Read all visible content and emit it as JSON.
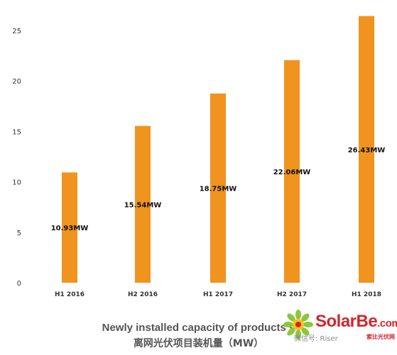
{
  "chart_data": {
    "type": "bar",
    "categories": [
      "H1 2016",
      "H2 2016",
      "H1 2017",
      "H2 2017",
      "H1 2018"
    ],
    "values": [
      10.93,
      15.54,
      18.75,
      22.06,
      26.43
    ],
    "data_labels": [
      "10.93MW",
      "15.54MW",
      "18.75MW",
      "22.06MW",
      "26.43MW"
    ],
    "yticks": [
      "0",
      "5",
      "10",
      "15",
      "20",
      "25"
    ],
    "ylim": [
      0,
      25
    ],
    "bar_color": "#f0931f",
    "grid": false,
    "legend": "none"
  },
  "caption": {
    "line1": "Newly installed capacity of products s",
    "line2": "离网光伏项目装机量（MW）"
  },
  "watermark": {
    "brand": "SolarBe",
    "brand_suffix": ".com",
    "subtitle": "微信号: Riser",
    "cn_name": "索比光伏网"
  }
}
